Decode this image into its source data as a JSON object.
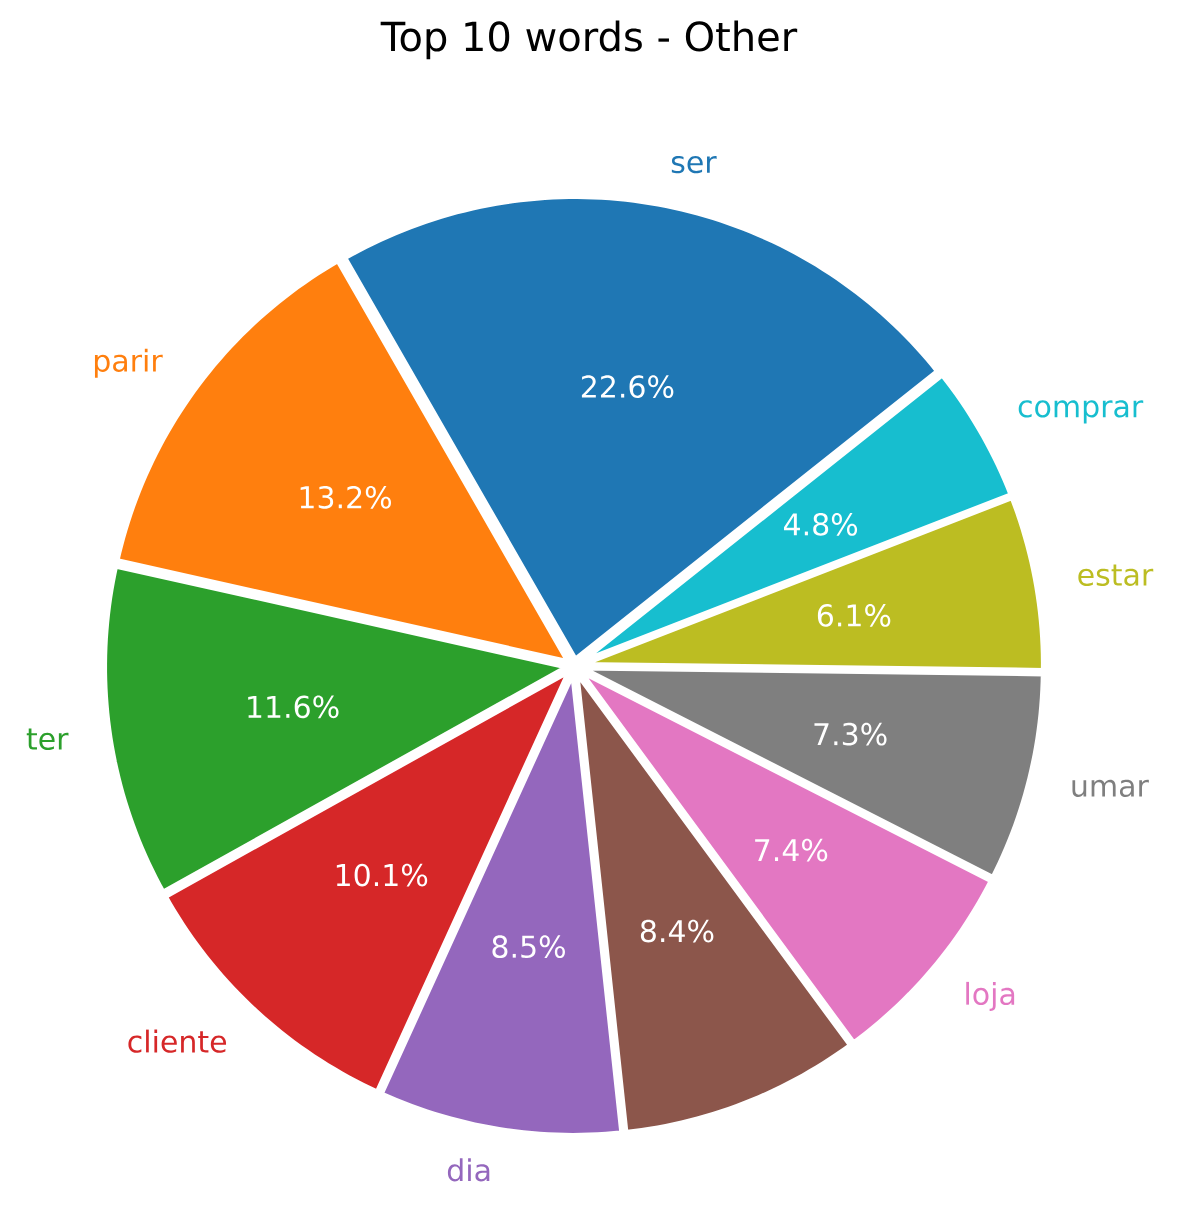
{
  "chart_data": {
    "type": "pie",
    "title": "Top 10 words - Other",
    "categories": [
      "ser",
      "parir",
      "ter",
      "cliente",
      "dia",
      null,
      "loja",
      "umar",
      "estar",
      "comprar"
    ],
    "values": [
      22.6,
      13.2,
      11.6,
      10.1,
      8.5,
      8.4,
      7.4,
      7.3,
      6.1,
      4.8
    ],
    "value_labels": [
      "22.6%",
      "13.2%",
      "11.6%",
      "10.1%",
      "8.5%",
      "8.4%",
      "7.4%",
      "7.3%",
      "6.1%",
      "4.8%"
    ],
    "colors": [
      "#1f77b4",
      "#ff7f0e",
      "#2ca02c",
      "#d62728",
      "#9467bd",
      "#8c564b",
      "#e377c2",
      "#7f7f7f",
      "#bcbd22",
      "#17becf"
    ]
  }
}
